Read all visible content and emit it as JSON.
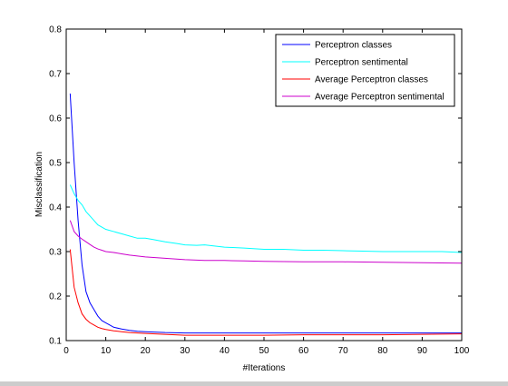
{
  "chart_data": {
    "type": "line",
    "title": "",
    "xlabel": "#Iterations",
    "ylabel": "Misclassification",
    "xlim": [
      0,
      100
    ],
    "ylim": [
      0.1,
      0.8
    ],
    "xticks": [
      0,
      10,
      20,
      30,
      40,
      50,
      60,
      70,
      80,
      90,
      100
    ],
    "yticks": [
      0.1,
      0.2,
      0.3,
      0.4,
      0.5,
      0.6,
      0.7,
      0.8
    ],
    "grid": false,
    "legend_position": "top-right",
    "series": [
      {
        "name": "Perceptron classes",
        "color": "#0000ff",
        "points": [
          [
            1,
            0.655
          ],
          [
            2,
            0.5
          ],
          [
            3,
            0.37
          ],
          [
            4,
            0.27
          ],
          [
            5,
            0.21
          ],
          [
            6,
            0.185
          ],
          [
            7,
            0.17
          ],
          [
            8,
            0.155
          ],
          [
            9,
            0.145
          ],
          [
            10,
            0.14
          ],
          [
            12,
            0.13
          ],
          [
            14,
            0.126
          ],
          [
            16,
            0.123
          ],
          [
            18,
            0.121
          ],
          [
            20,
            0.12
          ],
          [
            25,
            0.118
          ],
          [
            30,
            0.117
          ],
          [
            40,
            0.117
          ],
          [
            50,
            0.117
          ],
          [
            60,
            0.117
          ],
          [
            70,
            0.117
          ],
          [
            80,
            0.117
          ],
          [
            90,
            0.117
          ],
          [
            100,
            0.117
          ]
        ]
      },
      {
        "name": "Perceptron sentimental",
        "color": "#00ffff",
        "points": [
          [
            1,
            0.45
          ],
          [
            2,
            0.43
          ],
          [
            3,
            0.415
          ],
          [
            4,
            0.405
          ],
          [
            5,
            0.39
          ],
          [
            6,
            0.38
          ],
          [
            7,
            0.37
          ],
          [
            8,
            0.36
          ],
          [
            9,
            0.355
          ],
          [
            10,
            0.35
          ],
          [
            12,
            0.345
          ],
          [
            14,
            0.34
          ],
          [
            16,
            0.335
          ],
          [
            18,
            0.33
          ],
          [
            20,
            0.33
          ],
          [
            22,
            0.327
          ],
          [
            25,
            0.322
          ],
          [
            28,
            0.318
          ],
          [
            30,
            0.315
          ],
          [
            33,
            0.314
          ],
          [
            35,
            0.315
          ],
          [
            38,
            0.312
          ],
          [
            40,
            0.31
          ],
          [
            45,
            0.308
          ],
          [
            50,
            0.305
          ],
          [
            55,
            0.305
          ],
          [
            60,
            0.303
          ],
          [
            65,
            0.303
          ],
          [
            70,
            0.302
          ],
          [
            75,
            0.301
          ],
          [
            80,
            0.3
          ],
          [
            85,
            0.3
          ],
          [
            90,
            0.3
          ],
          [
            95,
            0.3
          ],
          [
            100,
            0.298
          ]
        ]
      },
      {
        "name": "Average Perceptron classes",
        "color": "#ff0000",
        "points": [
          [
            1,
            0.305
          ],
          [
            2,
            0.22
          ],
          [
            3,
            0.185
          ],
          [
            4,
            0.16
          ],
          [
            5,
            0.148
          ],
          [
            6,
            0.14
          ],
          [
            7,
            0.135
          ],
          [
            8,
            0.13
          ],
          [
            9,
            0.127
          ],
          [
            10,
            0.125
          ],
          [
            12,
            0.122
          ],
          [
            14,
            0.12
          ],
          [
            16,
            0.118
          ],
          [
            18,
            0.117
          ],
          [
            20,
            0.116
          ],
          [
            25,
            0.114
          ],
          [
            30,
            0.112
          ],
          [
            40,
            0.112
          ],
          [
            50,
            0.112
          ],
          [
            60,
            0.113
          ],
          [
            70,
            0.113
          ],
          [
            80,
            0.113
          ],
          [
            90,
            0.114
          ],
          [
            100,
            0.115
          ]
        ]
      },
      {
        "name": "Average Perceptron sentimental",
        "color": "#cc00cc",
        "points": [
          [
            1,
            0.37
          ],
          [
            2,
            0.345
          ],
          [
            3,
            0.335
          ],
          [
            4,
            0.328
          ],
          [
            5,
            0.322
          ],
          [
            6,
            0.316
          ],
          [
            7,
            0.31
          ],
          [
            8,
            0.306
          ],
          [
            9,
            0.303
          ],
          [
            10,
            0.3
          ],
          [
            12,
            0.298
          ],
          [
            14,
            0.295
          ],
          [
            16,
            0.292
          ],
          [
            18,
            0.29
          ],
          [
            20,
            0.288
          ],
          [
            25,
            0.285
          ],
          [
            30,
            0.282
          ],
          [
            35,
            0.28
          ],
          [
            40,
            0.28
          ],
          [
            45,
            0.279
          ],
          [
            50,
            0.278
          ],
          [
            60,
            0.277
          ],
          [
            70,
            0.277
          ],
          [
            80,
            0.276
          ],
          [
            90,
            0.275
          ],
          [
            100,
            0.274
          ]
        ]
      }
    ]
  }
}
